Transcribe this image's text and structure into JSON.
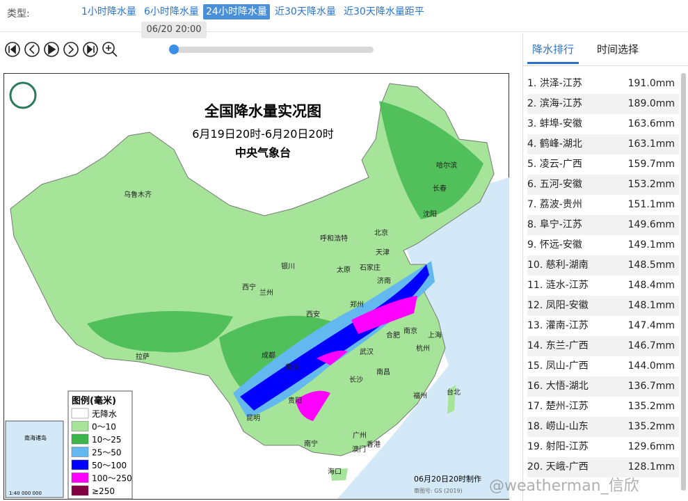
{
  "header": {
    "type_label": "类型:",
    "tabs": [
      "1小时降水量",
      "6小时降水量",
      "24小时降水量",
      "近30天降水量",
      "近30天降水量距平"
    ],
    "active_tab": 2,
    "time_tooltip": "06/20 20:00"
  },
  "map": {
    "title": "全国降水量实况图",
    "period": "6月19日20时-6月20日20时",
    "issuer": "中央气象台",
    "legend_title": "图例(毫米)",
    "legend": [
      {
        "label": "无降水",
        "color": "#ffffff"
      },
      {
        "label": "0～10",
        "color": "#a6e49a"
      },
      {
        "label": "10～25",
        "color": "#3cb54a"
      },
      {
        "label": "25～50",
        "color": "#63b8f0"
      },
      {
        "label": "50～100",
        "color": "#0000ff"
      },
      {
        "label": "100～250",
        "color": "#ff00ff"
      },
      {
        "label": "≥250",
        "color": "#800040"
      }
    ],
    "cities": [
      "乌鲁木齐",
      "哈尔滨",
      "长春",
      "沈阳",
      "北京",
      "天津",
      "呼和浩特",
      "银川",
      "太原",
      "石家庄",
      "济南",
      "西宁",
      "兰州",
      "郑州",
      "西安",
      "南京",
      "合肥",
      "上海",
      "拉萨",
      "成都",
      "武汉",
      "杭州",
      "重庆",
      "长沙",
      "南昌",
      "福州",
      "台北",
      "贵阳",
      "昆明",
      "南宁",
      "广州",
      "香港",
      "澳门",
      "海口"
    ],
    "footer": "06月20日20时制作",
    "map_number": "审图号: GS (2019)",
    "inset_label": "南海诸岛",
    "inset_scale": "1:40 000 000"
  },
  "ranking": {
    "tabs": [
      "降水排行",
      "时间选择"
    ],
    "rows": [
      {
        "item": "1. 洪泽-江苏",
        "amount": "191.0mm"
      },
      {
        "item": "2. 滨海-江苏",
        "amount": "189.0mm"
      },
      {
        "item": "3. 蚌埠-安徽",
        "amount": "163.6mm"
      },
      {
        "item": "4. 鹤峰-湖北",
        "amount": "163.1mm"
      },
      {
        "item": "5. 凌云-广西",
        "amount": "159.7mm"
      },
      {
        "item": "6. 五河-安徽",
        "amount": "153.2mm"
      },
      {
        "item": "7. 荔波-贵州",
        "amount": "151.1mm"
      },
      {
        "item": "8. 阜宁-江苏",
        "amount": "149.6mm"
      },
      {
        "item": "9. 怀远-安徽",
        "amount": "149.1mm"
      },
      {
        "item": "10. 慈利-湖南",
        "amount": "148.5mm"
      },
      {
        "item": "11. 涟水-江苏",
        "amount": "148.4mm"
      },
      {
        "item": "12. 凤阳-安徽",
        "amount": "148.1mm"
      },
      {
        "item": "13. 灌南-江苏",
        "amount": "147.4mm"
      },
      {
        "item": "14. 东兰-广西",
        "amount": "146.7mm"
      },
      {
        "item": "15. 凤山-广西",
        "amount": "144.0mm"
      },
      {
        "item": "16. 大悟-湖北",
        "amount": "136.7mm"
      },
      {
        "item": "17. 楚州-江苏",
        "amount": "135.2mm"
      },
      {
        "item": "18. 崂山-山东",
        "amount": "135.2mm"
      },
      {
        "item": "19. 射阳-江苏",
        "amount": "129.6mm"
      },
      {
        "item": "20. 天峨-广西",
        "amount": "128.1mm"
      }
    ]
  },
  "watermark": "@weatherman_信欣"
}
